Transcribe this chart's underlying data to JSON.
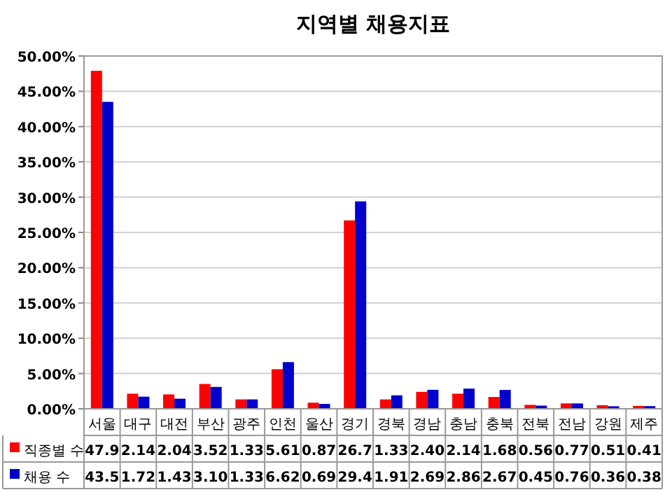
{
  "chart_data": {
    "type": "bar",
    "title": "지역별 채용지표",
    "categories": [
      "서울",
      "대구",
      "대전",
      "부산",
      "광주",
      "인천",
      "울산",
      "경기",
      "경북",
      "경남",
      "충남",
      "충북",
      "전북",
      "전남",
      "강원",
      "제주"
    ],
    "series": [
      {
        "name": "직종별 수",
        "color": "#ff0000",
        "values": [
          47.9,
          2.14,
          2.04,
          3.52,
          1.33,
          5.61,
          0.87,
          26.7,
          1.33,
          2.4,
          2.14,
          1.68,
          0.56,
          0.77,
          0.51,
          0.41
        ],
        "value_labels": [
          "47.9",
          "2.14",
          "2.04",
          "3.52",
          "1.33",
          "5.61",
          "0.87",
          "26.7",
          "1.33",
          "2.40",
          "2.14",
          "1.68",
          "0.56",
          "0.77",
          "0.51",
          "0.41"
        ]
      },
      {
        "name": "채용 수",
        "color": "#0000cc",
        "values": [
          43.5,
          1.72,
          1.43,
          3.1,
          1.33,
          6.62,
          0.69,
          29.4,
          1.91,
          2.69,
          2.86,
          2.67,
          0.45,
          0.76,
          0.36,
          0.38
        ],
        "value_labels": [
          "43.5",
          "1.72",
          "1.43",
          "3.10",
          "1.33",
          "6.62",
          "0.69",
          "29.4",
          "1.91",
          "2.69",
          "2.86",
          "2.67",
          "0.45",
          "0.76",
          "0.36",
          "0.38"
        ]
      }
    ],
    "ylim": [
      0,
      50
    ],
    "yticks": [
      {
        "value": 0,
        "label": "0.00%"
      },
      {
        "value": 5,
        "label": "5.00%"
      },
      {
        "value": 10,
        "label": "10.00%"
      },
      {
        "value": 15,
        "label": "15.00%"
      },
      {
        "value": 20,
        "label": "20.00%"
      },
      {
        "value": 25,
        "label": "25.00%"
      },
      {
        "value": 30,
        "label": "30.00%"
      },
      {
        "value": 35,
        "label": "35.00%"
      },
      {
        "value": 40,
        "label": "40.00%"
      },
      {
        "value": 45,
        "label": "45.00%"
      },
      {
        "value": 50,
        "label": "50.00%"
      }
    ],
    "grid": "y",
    "legend": "bottom"
  }
}
